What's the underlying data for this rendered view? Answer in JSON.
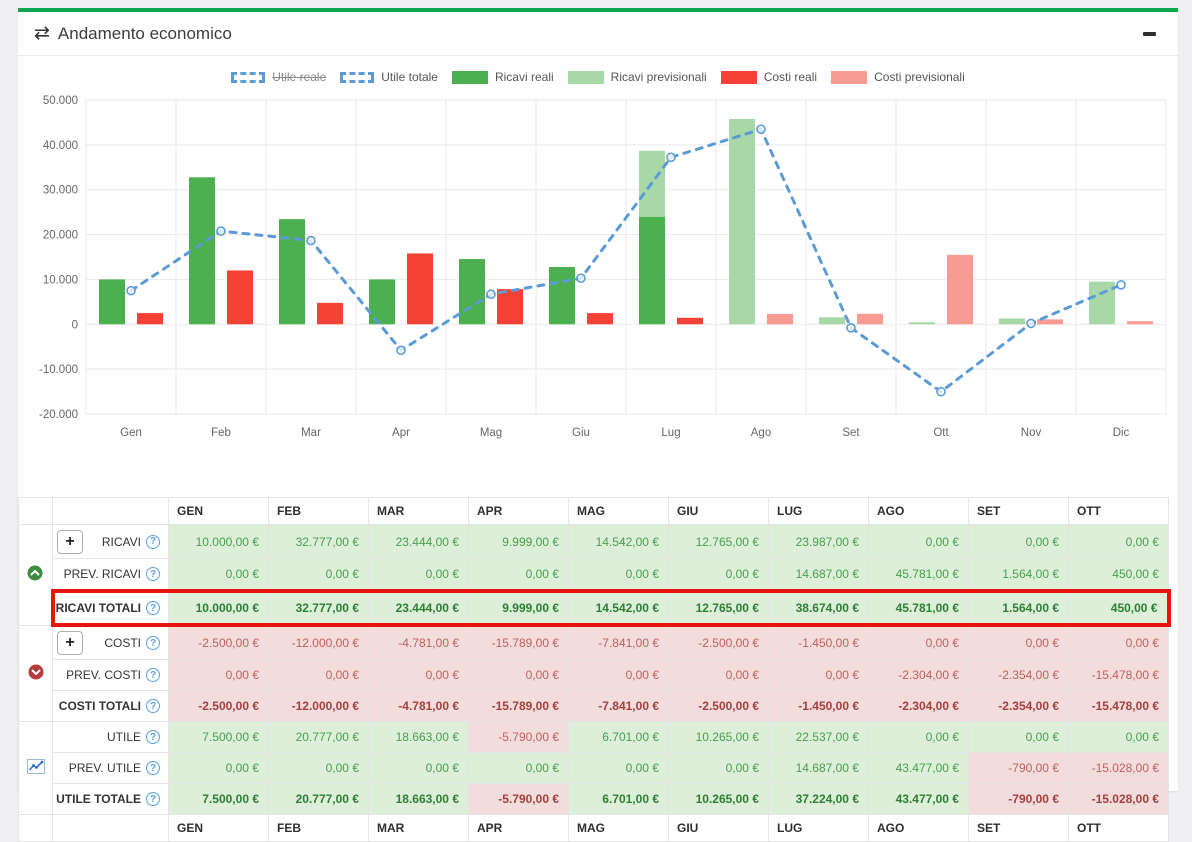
{
  "panel": {
    "title": "Andamento economico",
    "collapse_label": "minimize"
  },
  "chart_data": {
    "type": "bar+line",
    "x": [
      "Gen",
      "Feb",
      "Mar",
      "Apr",
      "Mag",
      "Giu",
      "Lug",
      "Ago",
      "Set",
      "Ott",
      "Nov",
      "Dic"
    ],
    "series": [
      {
        "name": "Utile reale",
        "type": "line",
        "hidden": true,
        "values": []
      },
      {
        "name": "Utile totale",
        "type": "line",
        "values": [
          7500,
          20777,
          18663,
          -5790,
          6701,
          10265,
          37224,
          43477,
          -790,
          -15028,
          200,
          8800
        ]
      },
      {
        "name": "Ricavi reali",
        "type": "bar",
        "values": [
          10000,
          32777,
          23444,
          9999,
          14542,
          12765,
          23987,
          0,
          0,
          0,
          0,
          0
        ]
      },
      {
        "name": "Ricavi previsionali",
        "type": "bar",
        "values": [
          0,
          0,
          0,
          0,
          0,
          0,
          14687,
          45781,
          1564,
          450,
          1300,
          9500
        ]
      },
      {
        "name": "Costi reali",
        "type": "bar",
        "values": [
          -2500,
          -12000,
          -4781,
          -15789,
          -7841,
          -2500,
          -1450,
          0,
          0,
          0,
          0,
          0
        ]
      },
      {
        "name": "Costi previsionali",
        "type": "bar",
        "values": [
          0,
          0,
          0,
          0,
          0,
          0,
          0,
          -2304,
          -2354,
          -15478,
          -1100,
          -700
        ]
      }
    ],
    "ylim": [
      -20000,
      50000
    ],
    "ytick_step": 10000,
    "ytick_labels": [
      "50.000",
      "40.000",
      "30.000",
      "20.000",
      "10.000",
      "0",
      "-10.000",
      "-20.000"
    ],
    "grid": true,
    "legend_position": "top",
    "legend": [
      {
        "label": "Utile reale",
        "swatch": "dashed",
        "struck": true
      },
      {
        "label": "Utile totale",
        "swatch": "dashed",
        "struck": false
      },
      {
        "label": "Ricavi reali",
        "swatch": "#4cb050",
        "struck": false
      },
      {
        "label": "Ricavi previsionali",
        "swatch": "#a8d8a8",
        "struck": false
      },
      {
        "label": "Costi reali",
        "swatch": "#f44336",
        "struck": false
      },
      {
        "label": "Costi previsionali",
        "swatch": "#f89b93",
        "struck": false
      }
    ],
    "colors": {
      "ricavi_reali": "#4cb050",
      "ricavi_previsionali": "#a8d8a8",
      "costi_reali": "#f44336",
      "costi_previsionali": "#f89b93",
      "utile_line": "#5b9bd5",
      "grid": "#e9e9e9",
      "axis_text": "#666666"
    }
  },
  "table": {
    "columns": [
      "GEN",
      "FEB",
      "MAR",
      "APR",
      "MAG",
      "GIU",
      "LUG",
      "AGO",
      "SET",
      "OTT"
    ],
    "help_glyph": "?",
    "plus_label": "+",
    "sections": [
      {
        "icon": "trend-up-circle-icon",
        "tone": "green",
        "rows": [
          {
            "label": "RICAVI",
            "has_plus": true,
            "bold": false,
            "highlight": false,
            "values": [
              "10.000,00 €",
              "32.777,00 €",
              "23.444,00 €",
              "9.999,00 €",
              "14.542,00 €",
              "12.765,00 €",
              "23.987,00 €",
              "0,00 €",
              "0,00 €",
              "0,00 €"
            ]
          },
          {
            "label": "PREV. RICAVI",
            "has_plus": false,
            "bold": false,
            "highlight": false,
            "values": [
              "0,00 €",
              "0,00 €",
              "0,00 €",
              "0,00 €",
              "0,00 €",
              "0,00 €",
              "14.687,00 €",
              "45.781,00 €",
              "1.564,00 €",
              "450,00 €"
            ]
          },
          {
            "label": "RICAVI TOTALI",
            "has_plus": false,
            "bold": true,
            "highlight": true,
            "values": [
              "10.000,00 €",
              "32.777,00 €",
              "23.444,00 €",
              "9.999,00 €",
              "14.542,00 €",
              "12.765,00 €",
              "38.674,00 €",
              "45.781,00 €",
              "1.564,00 €",
              "450,00 €"
            ]
          }
        ]
      },
      {
        "icon": "trend-down-circle-icon",
        "tone": "red",
        "rows": [
          {
            "label": "COSTI",
            "has_plus": true,
            "bold": false,
            "highlight": false,
            "values": [
              "-2.500,00 €",
              "-12.000,00 €",
              "-4.781,00 €",
              "-15.789,00 €",
              "-7.841,00 €",
              "-2.500,00 €",
              "-1.450,00 €",
              "0,00 €",
              "0,00 €",
              "0,00 €"
            ]
          },
          {
            "label": "PREV. COSTI",
            "has_plus": false,
            "bold": false,
            "highlight": false,
            "values": [
              "0,00 €",
              "0,00 €",
              "0,00 €",
              "0,00 €",
              "0,00 €",
              "0,00 €",
              "0,00 €",
              "-2.304,00 €",
              "-2.354,00 €",
              "-15.478,00 €"
            ]
          },
          {
            "label": "COSTI TOTALI",
            "has_plus": false,
            "bold": true,
            "highlight": false,
            "values": [
              "-2.500,00 €",
              "-12.000,00 €",
              "-4.781,00 €",
              "-15.789,00 €",
              "-7.841,00 €",
              "-2.500,00 €",
              "-1.450,00 €",
              "-2.304,00 €",
              "-2.354,00 €",
              "-15.478,00 €"
            ]
          }
        ]
      },
      {
        "icon": "line-chart-icon",
        "tone": "auto",
        "rows": [
          {
            "label": "UTILE",
            "has_plus": false,
            "bold": false,
            "highlight": false,
            "values": [
              "7.500,00 €",
              "20.777,00 €",
              "18.663,00 €",
              "-5.790,00 €",
              "6.701,00 €",
              "10.265,00 €",
              "22.537,00 €",
              "0,00 €",
              "0,00 €",
              "0,00 €"
            ]
          },
          {
            "label": "PREV. UTILE",
            "has_plus": false,
            "bold": false,
            "highlight": false,
            "values": [
              "0,00 €",
              "0,00 €",
              "0,00 €",
              "0,00 €",
              "0,00 €",
              "0,00 €",
              "14.687,00 €",
              "43.477,00 €",
              "-790,00 €",
              "-15.028,00 €"
            ]
          },
          {
            "label": "UTILE TOTALE",
            "has_plus": false,
            "bold": true,
            "highlight": false,
            "values": [
              "7.500,00 €",
              "20.777,00 €",
              "18.663,00 €",
              "-5.790,00 €",
              "6.701,00 €",
              "10.265,00 €",
              "37.224,00 €",
              "43.477,00 €",
              "-790,00 €",
              "-15.028,00 €"
            ]
          }
        ]
      }
    ]
  }
}
